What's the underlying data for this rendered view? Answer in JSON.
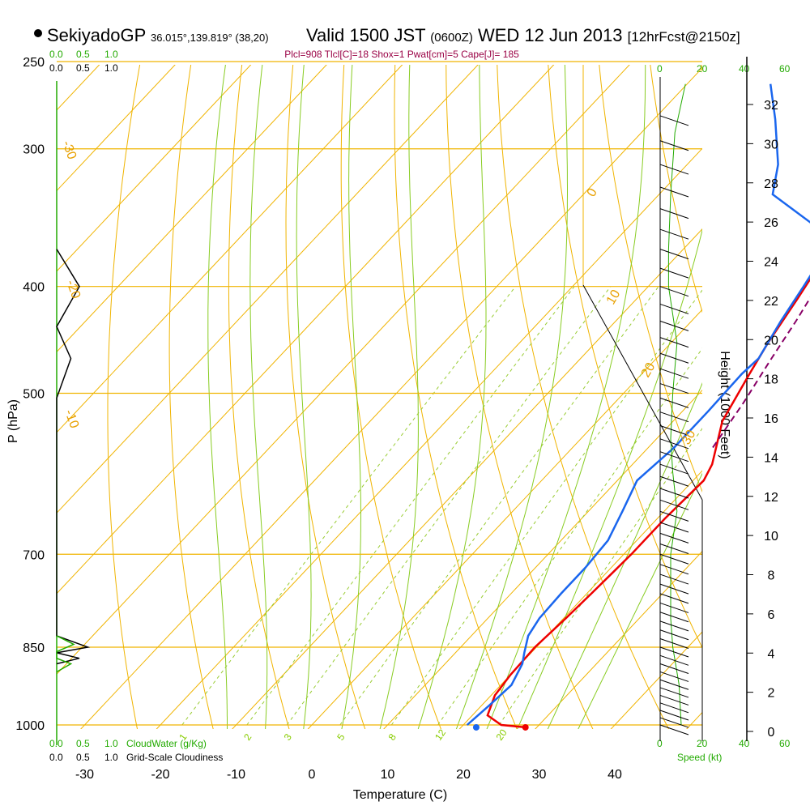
{
  "header": {
    "station": "SekiyadoGP",
    "coords": "36.015°,139.819° (38,20)",
    "valid": "Valid 1500 JST",
    "zulu": "(0600Z)",
    "date": "WED 12 Jun 2013",
    "forecast": "[12hrFcst@2150z]"
  },
  "parcel_info": "Plcl=908 Tlcl[C]=18 Shox=1 Pwat[cm]=5 Cape[J]= 185",
  "cloud_panel": {
    "scale_top_green": [
      "0.0",
      "0.5",
      "1.0"
    ],
    "scale_top_black": [
      "0.0",
      "0.5",
      "1.0"
    ],
    "scale_bottom_green": [
      "0.0",
      "0.5",
      "1.0"
    ],
    "scale_bottom_black": [
      "0.0",
      "0.5",
      "1.0"
    ],
    "cloudwater_label": "CloudWater (g/Kg)",
    "cloudiness_label": "Grid-Scale Cloudiness"
  },
  "wind_panel": {
    "speed_ticks_top": [
      "0",
      "20",
      "40",
      "60"
    ],
    "speed_ticks_bottom": [
      "0",
      "20",
      "40",
      "60"
    ],
    "speed_label": "Speed (kt)"
  },
  "chart_data": {
    "type": "line",
    "title": "SekiyadoGP Valid 1500 JST (0600Z) WED 12 Jun 2013",
    "xlabel": "Temperature (C)",
    "ylabel": "P (hPa)",
    "y2label": "Height (1000 Feet)",
    "y_scale": "log",
    "xlim": [
      -35,
      45
    ],
    "ylim": [
      1020,
      250
    ],
    "x_ticks": [
      "-30",
      "-20",
      "-10",
      "0",
      "10",
      "20",
      "30",
      "40"
    ],
    "y_ticks": [
      "250",
      "300",
      "400",
      "500",
      "700",
      "850",
      "1000"
    ],
    "y2_ticks": [
      "0",
      "2",
      "4",
      "6",
      "8",
      "10",
      "12",
      "14",
      "16",
      "18",
      "20",
      "22",
      "24",
      "26",
      "28",
      "30",
      "32"
    ],
    "isotherm_labels": [
      "-30",
      "-20",
      "-10",
      "0",
      "10",
      "20",
      "30"
    ],
    "mixing_ratio_labels": [
      "1",
      "2",
      "3",
      "5",
      "8",
      "12",
      "20"
    ],
    "series": [
      {
        "name": "Temperature",
        "color": "#ee0000",
        "points": [
          [
            28.5,
            1005
          ],
          [
            25,
            1000
          ],
          [
            22,
            980
          ],
          [
            20.5,
            940
          ],
          [
            20,
            900
          ],
          [
            19.8,
            850
          ],
          [
            20.3,
            800
          ],
          [
            20.6,
            760
          ],
          [
            21,
            700
          ],
          [
            21,
            650
          ],
          [
            21.4,
            600
          ],
          [
            20.5,
            580
          ],
          [
            16.5,
            530
          ],
          [
            14.2,
            480
          ],
          [
            12.8,
            450
          ],
          [
            11.2,
            410
          ],
          [
            9.8,
            380
          ],
          [
            8.3,
            345
          ],
          [
            7.5,
            320
          ],
          [
            7.2,
            300
          ],
          [
            9.5,
            260
          ]
        ]
      },
      {
        "name": "Dewpoint",
        "color": "#1a66ee",
        "points": [
          [
            20.5,
            1000
          ],
          [
            21,
            960
          ],
          [
            21.4,
            920
          ],
          [
            20.2,
            880
          ],
          [
            19.1,
            860
          ],
          [
            17.5,
            830
          ],
          [
            16.8,
            800
          ],
          [
            16.6,
            760
          ],
          [
            16.6,
            720
          ],
          [
            16.2,
            680
          ],
          [
            14.5,
            640
          ],
          [
            12.6,
            600
          ],
          [
            13.4,
            560
          ],
          [
            13.4,
            520
          ],
          [
            13.2,
            480
          ],
          [
            13.5,
            465
          ],
          [
            11.8,
            430
          ],
          [
            10.5,
            400
          ],
          [
            9,
            370
          ],
          [
            3.5,
            350
          ],
          [
            -5,
            330
          ],
          [
            -8,
            310
          ],
          [
            -14,
            282
          ],
          [
            -19,
            262
          ]
        ]
      },
      {
        "name": "Parcel",
        "color": "#880066",
        "dashed": true,
        "points": [
          [
            18.5,
            560
          ],
          [
            17,
            510
          ],
          [
            15.2,
            465
          ],
          [
            13.8,
            430
          ],
          [
            12.3,
            400
          ],
          [
            11,
            370
          ],
          [
            9.6,
            345
          ],
          [
            8.2,
            320
          ]
        ]
      }
    ],
    "cloudwater_profile": [
      [
        0.0,
        830
      ],
      [
        0.3,
        845
      ],
      [
        0.0,
        858
      ],
      [
        0.0,
        870
      ],
      [
        0.25,
        880
      ],
      [
        0.0,
        895
      ]
    ],
    "cloudiness_profile": [
      [
        0.0,
        370
      ],
      [
        0.4,
        400
      ],
      [
        0.0,
        435
      ],
      [
        0.25,
        465
      ],
      [
        0.0,
        505
      ],
      [
        0.0,
        830
      ],
      [
        0.55,
        850
      ],
      [
        0.0,
        860
      ],
      [
        0.4,
        870
      ],
      [
        0.0,
        880
      ]
    ],
    "wind_speed_profile": [
      [
        10,
        1000
      ],
      [
        9,
        920
      ],
      [
        6,
        850
      ],
      [
        5,
        800
      ],
      [
        5,
        700
      ],
      [
        8,
        640
      ],
      [
        6,
        590
      ],
      [
        5,
        550
      ],
      [
        6,
        500
      ],
      [
        8,
        450
      ],
      [
        4,
        400
      ],
      [
        4,
        370
      ],
      [
        5,
        330
      ],
      [
        7,
        290
      ],
      [
        12,
        262
      ]
    ]
  }
}
